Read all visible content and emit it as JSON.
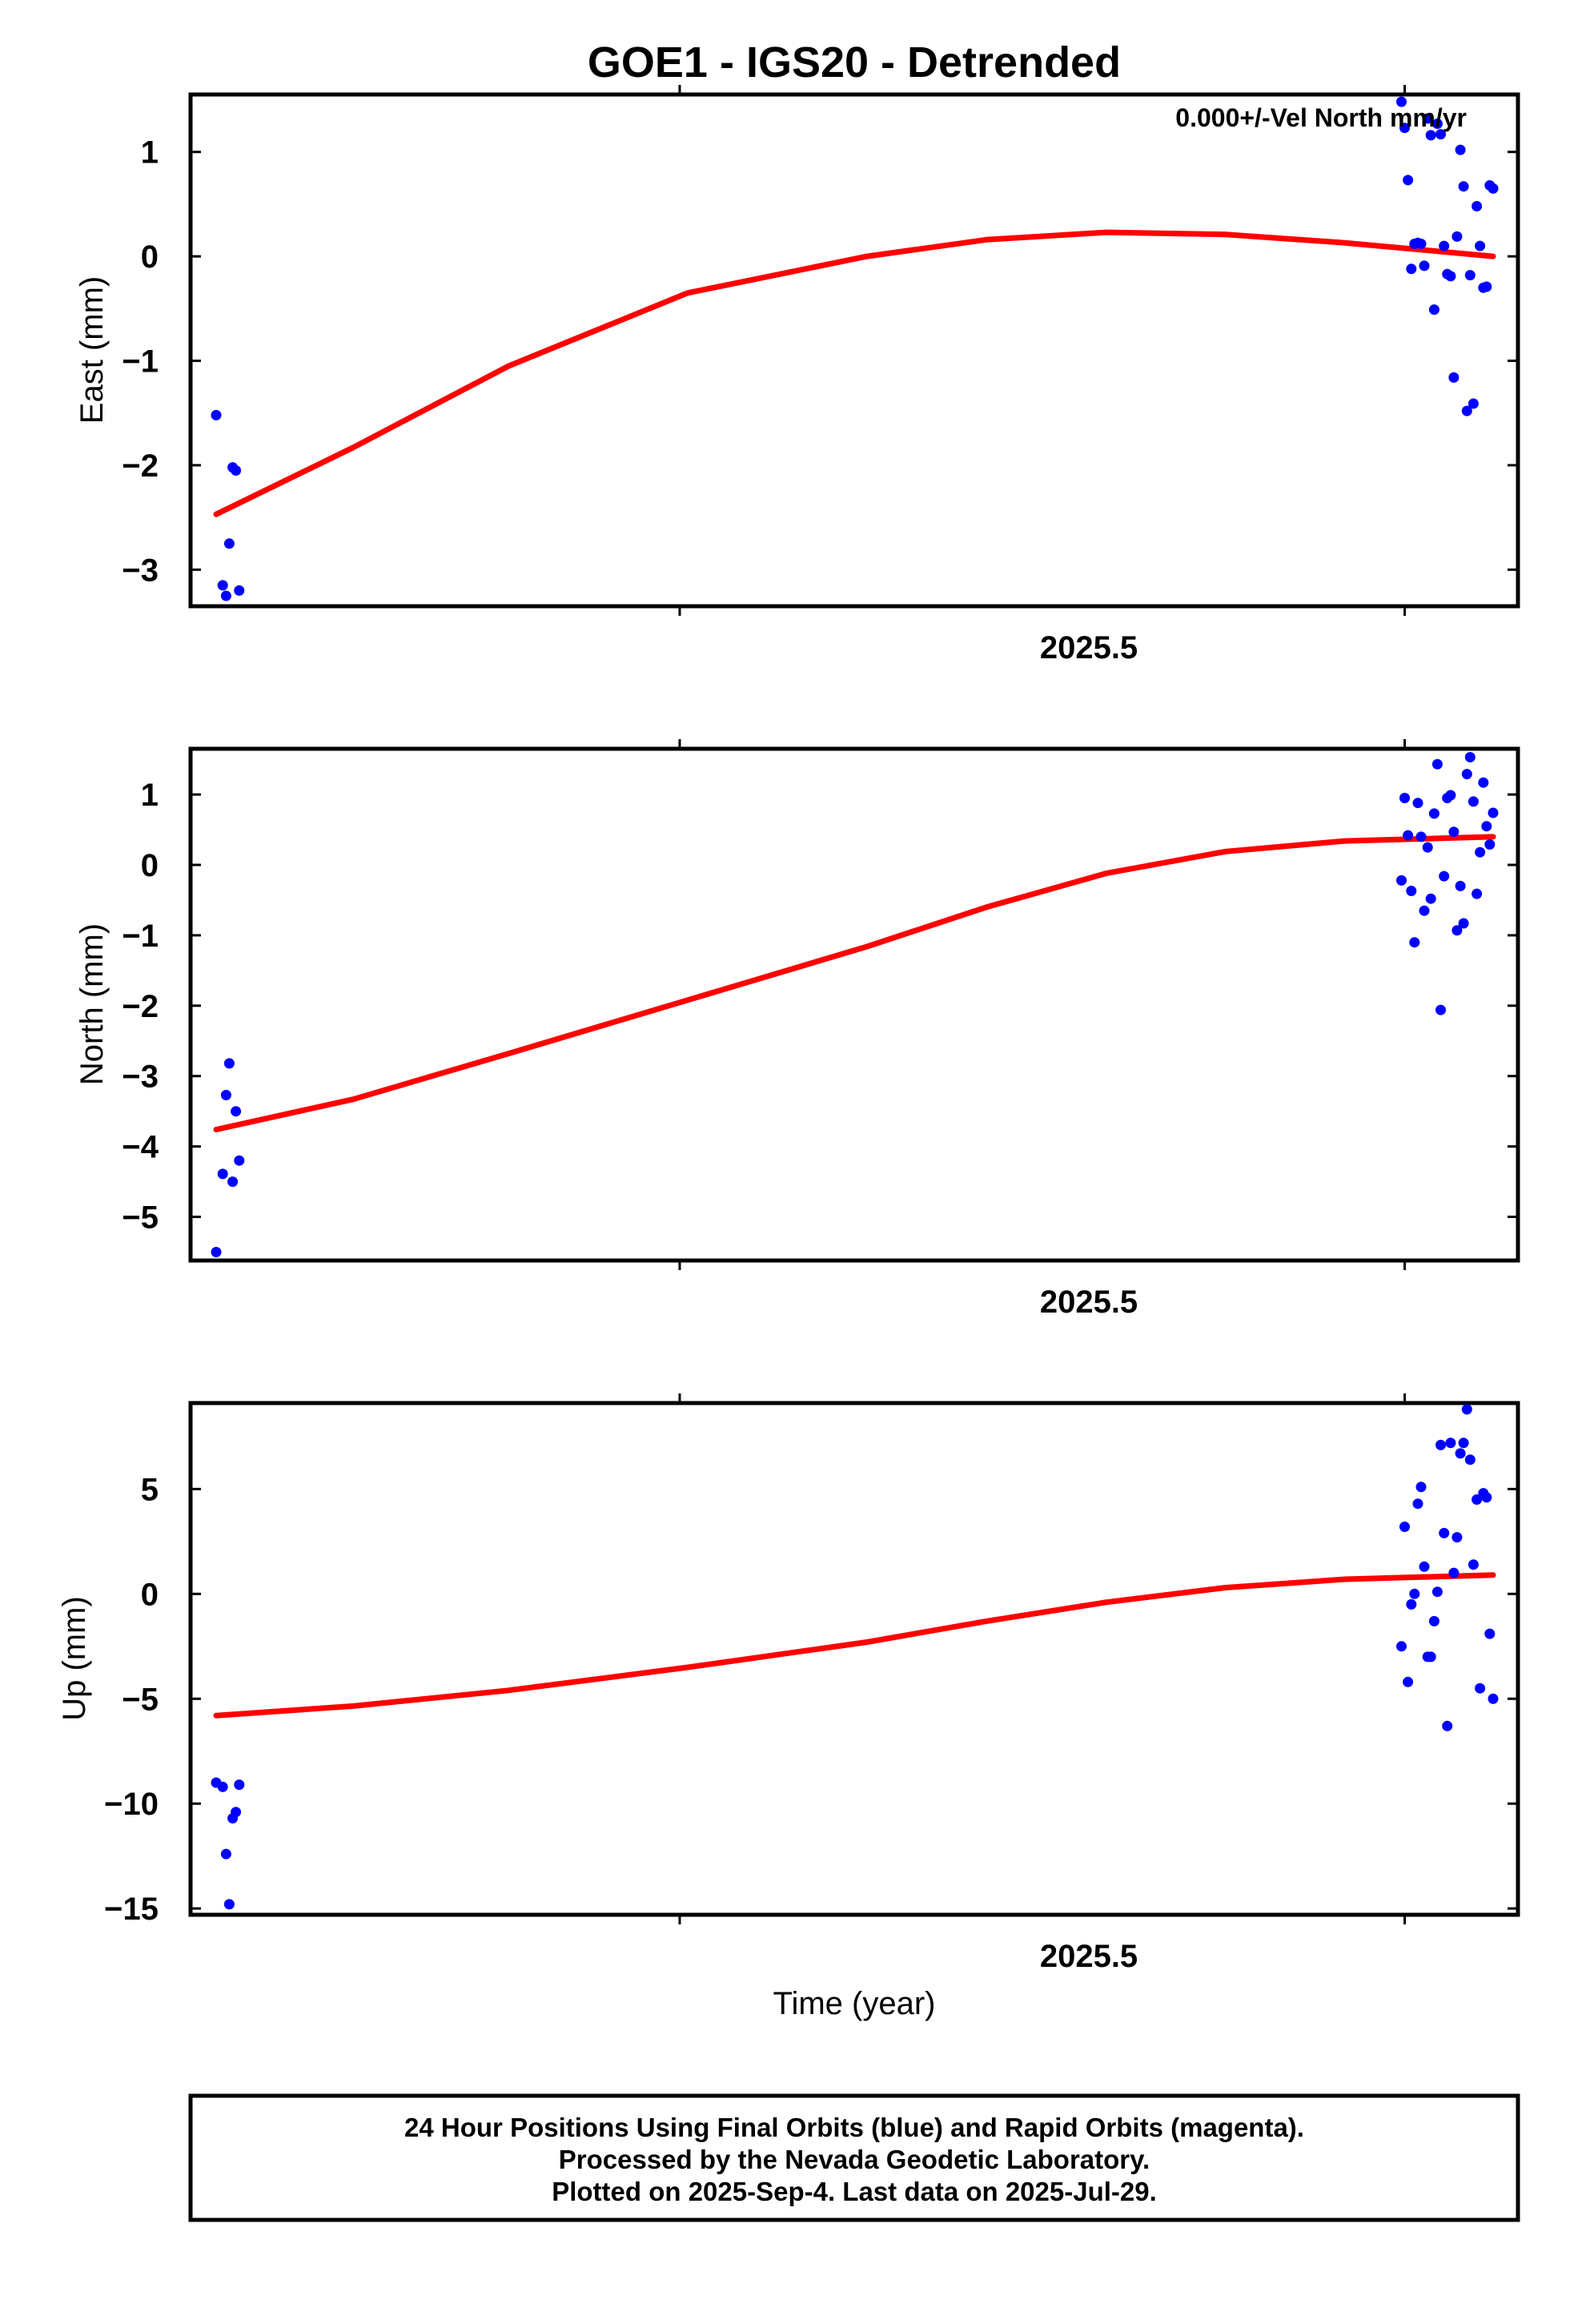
{
  "chart_data": {
    "title": "GOE1 - IGS20 - Detrended",
    "annotation": "0.000+/-Vel North mm/yr",
    "xlabel": "Time (year)",
    "x_tick_label": "2025.5",
    "footer": [
      "24 Hour Positions Using Final Orbits (blue) and Rapid Orbits (magenta).",
      "Processed by the Nevada Geodetic Laboratory.",
      "Plotted on 2025-Sep-4. Last data on 2025-Jul-29."
    ],
    "colors": {
      "points": "#0000ff",
      "fit": "#ff0000",
      "frame": "#000000"
    },
    "panels": [
      {
        "type": "scatter",
        "ylabel": "East (mm)",
        "ylim": [
          -3.35,
          1.55
        ],
        "yticks": [
          1,
          0,
          -1,
          -2,
          -3
        ],
        "ytick_labels": [
          "1",
          "0",
          "−1",
          "−2",
          "−3"
        ],
        "points": [
          [
            2024.5054,
            -1.52
          ],
          [
            2024.5109,
            -3.15
          ],
          [
            2024.5137,
            -3.25
          ],
          [
            2024.5164,
            -2.75
          ],
          [
            2024.5192,
            -2.02
          ],
          [
            2024.5219,
            -2.05
          ],
          [
            2024.5247,
            -3.2
          ],
          [
            2025.4973,
            1.48
          ],
          [
            2025.5,
            1.23
          ],
          [
            2025.5027,
            0.73
          ],
          [
            2025.5055,
            -0.12
          ],
          [
            2025.5082,
            0.12
          ],
          [
            2025.511,
            0.13
          ],
          [
            2025.5137,
            0.12
          ],
          [
            2025.5164,
            -0.09
          ],
          [
            2025.5192,
            1.32
          ],
          [
            2025.5219,
            1.16
          ],
          [
            2025.5247,
            -0.51
          ],
          [
            2025.5274,
            1.27
          ],
          [
            2025.5301,
            1.17
          ],
          [
            2025.5329,
            0.1
          ],
          [
            2025.5356,
            -0.17
          ],
          [
            2025.5384,
            -0.19
          ],
          [
            2025.5411,
            -1.16
          ],
          [
            2025.5438,
            0.19
          ],
          [
            2025.5466,
            1.02
          ],
          [
            2025.5493,
            0.67
          ],
          [
            2025.5521,
            -1.48
          ],
          [
            2025.5548,
            -0.18
          ],
          [
            2025.5575,
            -1.41
          ],
          [
            2025.5603,
            0.48
          ],
          [
            2025.563,
            0.1
          ],
          [
            2025.5658,
            -0.3
          ],
          [
            2025.5685,
            -0.29
          ],
          [
            2025.5712,
            0.68
          ],
          [
            2025.574,
            0.65
          ]
        ],
        "fit": [
          [
            2024.5054,
            -2.47
          ],
          [
            2024.62,
            -1.83
          ],
          [
            2024.75,
            -1.05
          ],
          [
            2024.9,
            -0.35
          ],
          [
            2025.05,
            0.0
          ],
          [
            2025.15,
            0.16
          ],
          [
            2025.25,
            0.23
          ],
          [
            2025.35,
            0.21
          ],
          [
            2025.45,
            0.13
          ],
          [
            2025.574,
            0.0
          ]
        ]
      },
      {
        "type": "scatter",
        "ylabel": "North (mm)",
        "ylim": [
          -5.62,
          1.65
        ],
        "yticks": [
          1,
          0,
          -1,
          -2,
          -3,
          -4,
          -5
        ],
        "ytick_labels": [
          "1",
          "0",
          "−1",
          "−2",
          "−3",
          "−4",
          "−5"
        ],
        "points": [
          [
            2024.5054,
            -5.5
          ],
          [
            2024.5109,
            -4.39
          ],
          [
            2024.5137,
            -3.27
          ],
          [
            2024.5164,
            -2.82
          ],
          [
            2024.5192,
            -4.5
          ],
          [
            2024.5219,
            -3.5
          ],
          [
            2024.5247,
            -4.2
          ],
          [
            2025.4973,
            -0.22
          ],
          [
            2025.5,
            0.95
          ],
          [
            2025.5027,
            0.42
          ],
          [
            2025.5055,
            -0.37
          ],
          [
            2025.5082,
            -1.1
          ],
          [
            2025.511,
            0.88
          ],
          [
            2025.5137,
            0.4
          ],
          [
            2025.5164,
            -0.65
          ],
          [
            2025.5192,
            0.25
          ],
          [
            2025.5219,
            -0.48
          ],
          [
            2025.5247,
            0.73
          ],
          [
            2025.5274,
            1.43
          ],
          [
            2025.5301,
            -2.06
          ],
          [
            2025.5329,
            -0.16
          ],
          [
            2025.5356,
            0.95
          ],
          [
            2025.5384,
            0.99
          ],
          [
            2025.5411,
            0.47
          ],
          [
            2025.5438,
            -0.93
          ],
          [
            2025.5466,
            -0.3
          ],
          [
            2025.5493,
            -0.83
          ],
          [
            2025.5521,
            1.29
          ],
          [
            2025.5548,
            1.53
          ],
          [
            2025.5575,
            0.9
          ],
          [
            2025.5603,
            -0.41
          ],
          [
            2025.563,
            0.18
          ],
          [
            2025.5658,
            1.17
          ],
          [
            2025.5685,
            0.55
          ],
          [
            2025.5712,
            0.29
          ],
          [
            2025.574,
            0.74
          ]
        ],
        "fit": [
          [
            2024.5054,
            -3.76
          ],
          [
            2024.62,
            -3.33
          ],
          [
            2024.75,
            -2.68
          ],
          [
            2024.9,
            -1.92
          ],
          [
            2025.05,
            -1.16
          ],
          [
            2025.15,
            -0.6
          ],
          [
            2025.25,
            -0.12
          ],
          [
            2025.35,
            0.19
          ],
          [
            2025.45,
            0.34
          ],
          [
            2025.574,
            0.4
          ]
        ]
      },
      {
        "type": "scatter",
        "ylabel": "Up (mm)",
        "ylim": [
          -15.3,
          9.1
        ],
        "yticks": [
          5,
          0,
          -5,
          -10,
          -15
        ],
        "ytick_labels": [
          "5",
          "0",
          "−5",
          "−10",
          "−15"
        ],
        "points": [
          [
            2024.5054,
            -9.0
          ],
          [
            2024.5109,
            -9.2
          ],
          [
            2024.5137,
            -12.4
          ],
          [
            2024.5164,
            -14.8
          ],
          [
            2024.5192,
            -10.7
          ],
          [
            2024.5219,
            -10.4
          ],
          [
            2024.5247,
            -9.1
          ],
          [
            2025.4973,
            -2.5
          ],
          [
            2025.5,
            3.2
          ],
          [
            2025.5027,
            -4.2
          ],
          [
            2025.5055,
            -0.5
          ],
          [
            2025.5082,
            0.0
          ],
          [
            2025.511,
            4.3
          ],
          [
            2025.5137,
            5.1
          ],
          [
            2025.5164,
            1.3
          ],
          [
            2025.5192,
            -3.0
          ],
          [
            2025.5219,
            -3.0
          ],
          [
            2025.5247,
            -1.3
          ],
          [
            2025.5274,
            0.1
          ],
          [
            2025.5301,
            7.1
          ],
          [
            2025.5329,
            2.9
          ],
          [
            2025.5356,
            -6.3
          ],
          [
            2025.5384,
            7.2
          ],
          [
            2025.5411,
            1.0
          ],
          [
            2025.5438,
            2.7
          ],
          [
            2025.5466,
            6.7
          ],
          [
            2025.5493,
            7.2
          ],
          [
            2025.5521,
            8.8
          ],
          [
            2025.5548,
            6.4
          ],
          [
            2025.5575,
            1.4
          ],
          [
            2025.5603,
            4.5
          ],
          [
            2025.563,
            -4.5
          ],
          [
            2025.5658,
            4.8
          ],
          [
            2025.5685,
            4.6
          ],
          [
            2025.5712,
            -1.9
          ],
          [
            2025.574,
            -5.0
          ]
        ],
        "fit": [
          [
            2024.5054,
            -5.8
          ],
          [
            2024.62,
            -5.35
          ],
          [
            2024.75,
            -4.6
          ],
          [
            2024.9,
            -3.5
          ],
          [
            2025.05,
            -2.3
          ],
          [
            2025.15,
            -1.3
          ],
          [
            2025.25,
            -0.4
          ],
          [
            2025.35,
            0.3
          ],
          [
            2025.45,
            0.7
          ],
          [
            2025.574,
            0.9
          ]
        ]
      }
    ]
  }
}
